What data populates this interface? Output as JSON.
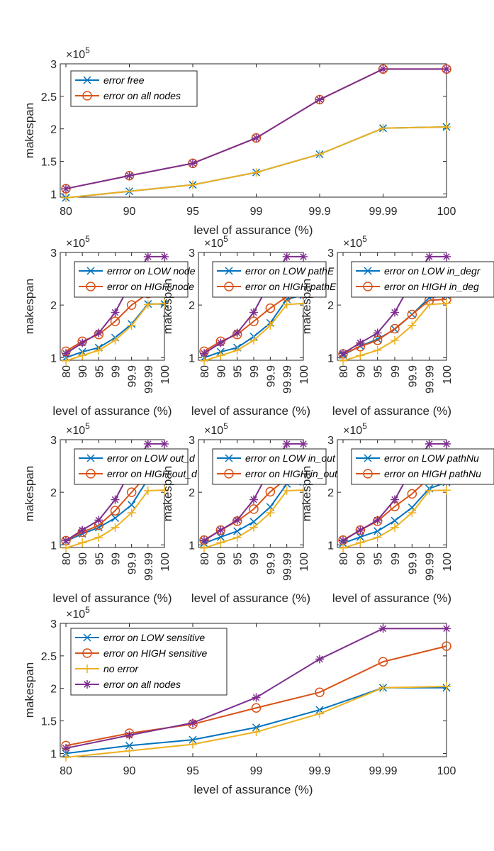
{
  "colors": {
    "blue": "#0072BD",
    "orange": "#D95319",
    "yellow": "#EDB120",
    "purple": "#7E2F8E"
  },
  "chart_data": [
    {
      "type": "line",
      "categories": [
        "80",
        "90",
        "95",
        "99",
        "99.9",
        "99.99",
        "100"
      ],
      "ylabel": "makespan",
      "xlabel": "level of assurance (%)",
      "exponent_label": "×10",
      "exponent": "5",
      "ylim": [
        0.95,
        3.0
      ],
      "yticks": [
        "1",
        "1.5",
        "2",
        "2.5",
        "3"
      ],
      "ytick_values": [
        1,
        1.5,
        2,
        2.5,
        3
      ],
      "legend_position": "top-left",
      "series": [
        {
          "name": "error free",
          "color": "#0072BD",
          "marker": "x",
          "in_legend": true,
          "values": [
            0.94,
            1.04,
            1.14,
            1.33,
            1.61,
            2.01,
            2.03
          ]
        },
        {
          "name": "error on all nodes",
          "color": "#D95319",
          "marker": "o",
          "in_legend": true,
          "values": [
            1.08,
            1.28,
            1.47,
            1.86,
            2.45,
            2.92,
            2.92
          ]
        },
        {
          "name": "",
          "color": "#EDB120",
          "marker": "+",
          "in_legend": false,
          "values": [
            0.94,
            1.04,
            1.14,
            1.33,
            1.61,
            2.01,
            2.03
          ]
        },
        {
          "name": "",
          "color": "#7E2F8E",
          "marker": "*",
          "in_legend": false,
          "values": [
            1.08,
            1.28,
            1.47,
            1.86,
            2.45,
            2.92,
            2.92
          ]
        }
      ]
    },
    {
      "type": "line",
      "categories": [
        "80",
        "90",
        "95",
        "99",
        "99.9",
        "99.99",
        "100"
      ],
      "ylabel": "makespan",
      "xlabel": "level of assurance (%)",
      "exponent_label": "×10",
      "exponent": "5",
      "ylim": [
        0.95,
        3.0
      ],
      "yticks": [
        "1",
        "2",
        "3"
      ],
      "ytick_values": [
        1,
        2,
        3
      ],
      "legend_position": "top-right",
      "series": [
        {
          "name": "errror on LOW node",
          "color": "#0072BD",
          "marker": "x",
          "in_legend": true,
          "values": [
            1.0,
            1.11,
            1.19,
            1.38,
            1.64,
            2.02,
            2.02
          ]
        },
        {
          "name": "error on HIGH node",
          "color": "#D95319",
          "marker": "o",
          "in_legend": true,
          "values": [
            1.12,
            1.31,
            1.44,
            1.69,
            2.0,
            2.22,
            2.29
          ]
        },
        {
          "name": "",
          "color": "#EDB120",
          "marker": "+",
          "in_legend": false,
          "values": [
            0.94,
            1.04,
            1.14,
            1.33,
            1.61,
            2.01,
            2.03
          ]
        },
        {
          "name": "",
          "color": "#7E2F8E",
          "marker": "*",
          "in_legend": false,
          "values": [
            1.08,
            1.28,
            1.47,
            1.86,
            2.45,
            2.92,
            2.92
          ]
        }
      ]
    },
    {
      "type": "line",
      "categories": [
        "80",
        "90",
        "95",
        "99",
        "99.9",
        "99.99",
        "100"
      ],
      "ylabel": "makespan",
      "xlabel": "level of assurance (%)",
      "exponent_label": "×10",
      "exponent": "5",
      "ylim": [
        0.95,
        3.0
      ],
      "yticks": [
        "1",
        "2",
        "3"
      ],
      "ytick_values": [
        1,
        2,
        3
      ],
      "legend_position": "top-right",
      "series": [
        {
          "name": "error on LOW pathE",
          "color": "#0072BD",
          "marker": "x",
          "in_legend": true,
          "values": [
            1.0,
            1.11,
            1.19,
            1.4,
            1.66,
            2.11,
            2.19
          ]
        },
        {
          "name": "error on HIGH pathE",
          "color": "#D95319",
          "marker": "o",
          "in_legend": true,
          "values": [
            1.12,
            1.31,
            1.44,
            1.69,
            1.94,
            2.16,
            2.22
          ]
        },
        {
          "name": "",
          "color": "#EDB120",
          "marker": "+",
          "in_legend": false,
          "values": [
            0.94,
            1.04,
            1.14,
            1.33,
            1.61,
            2.01,
            2.03
          ]
        },
        {
          "name": "",
          "color": "#7E2F8E",
          "marker": "*",
          "in_legend": false,
          "values": [
            1.08,
            1.28,
            1.47,
            1.86,
            2.45,
            2.92,
            2.92
          ]
        }
      ]
    },
    {
      "type": "line",
      "categories": [
        "80",
        "90",
        "95",
        "99",
        "99.9",
        "99.99",
        "100"
      ],
      "ylabel": "makespan",
      "xlabel": "level of assurance (%)",
      "exponent_label": "×10",
      "exponent": "5",
      "ylim": [
        0.95,
        3.0
      ],
      "yticks": [
        "1",
        "2",
        "3"
      ],
      "ytick_values": [
        1,
        2,
        3
      ],
      "legend_position": "top-right",
      "series": [
        {
          "name": "error on LOW in_degr",
          "color": "#0072BD",
          "marker": "x",
          "in_legend": true,
          "values": [
            1.05,
            1.22,
            1.35,
            1.54,
            1.82,
            2.14,
            2.18
          ]
        },
        {
          "name": "error on HIGH in_deg",
          "color": "#D95319",
          "marker": "o",
          "in_legend": true,
          "values": [
            1.07,
            1.21,
            1.33,
            1.55,
            1.82,
            2.09,
            2.11
          ]
        },
        {
          "name": "",
          "color": "#EDB120",
          "marker": "+",
          "in_legend": false,
          "values": [
            0.94,
            1.04,
            1.14,
            1.33,
            1.61,
            2.01,
            2.03
          ]
        },
        {
          "name": "",
          "color": "#7E2F8E",
          "marker": "*",
          "in_legend": false,
          "values": [
            1.08,
            1.28,
            1.47,
            1.86,
            2.45,
            2.92,
            2.92
          ]
        }
      ]
    },
    {
      "type": "line",
      "categories": [
        "80",
        "90",
        "95",
        "99",
        "99.9",
        "99.99",
        "100"
      ],
      "ylabel": "makespan",
      "xlabel": "level of assurance (%)",
      "exponent_label": "×10",
      "exponent": "5",
      "ylim": [
        0.95,
        3.0
      ],
      "yticks": [
        "1",
        "2",
        "3"
      ],
      "ytick_values": [
        1,
        2,
        3
      ],
      "legend_position": "top-right",
      "series": [
        {
          "name": "error on LOW out_d",
          "color": "#0072BD",
          "marker": "x",
          "in_legend": true,
          "values": [
            1.07,
            1.21,
            1.33,
            1.51,
            1.76,
            2.25,
            2.29
          ]
        },
        {
          "name": "error on HIGH out_d",
          "color": "#D95319",
          "marker": "o",
          "in_legend": true,
          "values": [
            1.08,
            1.24,
            1.37,
            1.65,
            2.0,
            2.35,
            2.4
          ]
        },
        {
          "name": "",
          "color": "#EDB120",
          "marker": "+",
          "in_legend": false,
          "values": [
            0.94,
            1.04,
            1.14,
            1.33,
            1.61,
            2.03,
            2.04
          ]
        },
        {
          "name": "",
          "color": "#7E2F8E",
          "marker": "*",
          "in_legend": false,
          "values": [
            1.08,
            1.28,
            1.47,
            1.86,
            2.45,
            2.92,
            2.92
          ]
        }
      ]
    },
    {
      "type": "line",
      "categories": [
        "80",
        "90",
        "95",
        "99",
        "99.9",
        "99.99",
        "100"
      ],
      "ylabel": "makespan",
      "xlabel": "level of assurance (%)",
      "exponent_label": "×10",
      "exponent": "5",
      "ylim": [
        0.95,
        3.0
      ],
      "yticks": [
        "1",
        "2",
        "3"
      ],
      "ytick_values": [
        1,
        2,
        3
      ],
      "legend_position": "top-right",
      "series": [
        {
          "name": "error on LOW in_out",
          "color": "#0072BD",
          "marker": "x",
          "in_legend": true,
          "values": [
            1.03,
            1.15,
            1.26,
            1.44,
            1.72,
            2.16,
            2.2
          ]
        },
        {
          "name": "error on HIGH in_out",
          "color": "#D95319",
          "marker": "o",
          "in_legend": true,
          "values": [
            1.09,
            1.28,
            1.45,
            1.68,
            2.01,
            2.26,
            2.4
          ]
        },
        {
          "name": "",
          "color": "#EDB120",
          "marker": "+",
          "in_legend": false,
          "values": [
            0.94,
            1.04,
            1.14,
            1.33,
            1.61,
            2.03,
            2.04
          ]
        },
        {
          "name": "",
          "color": "#7E2F8E",
          "marker": "*",
          "in_legend": false,
          "values": [
            1.08,
            1.28,
            1.47,
            1.86,
            2.45,
            2.92,
            2.92
          ]
        }
      ]
    },
    {
      "type": "line",
      "categories": [
        "80",
        "90",
        "95",
        "99",
        "99.9",
        "99.99",
        "100"
      ],
      "ylabel": "makespan",
      "xlabel": "level of assurance (%)",
      "exponent_label": "×10",
      "exponent": "5",
      "ylim": [
        0.95,
        3.0
      ],
      "yticks": [
        "1",
        "2",
        "3"
      ],
      "ytick_values": [
        1,
        2,
        3
      ],
      "legend_position": "top-right",
      "series": [
        {
          "name": "error on LOW pathNu",
          "color": "#0072BD",
          "marker": "x",
          "in_legend": true,
          "values": [
            1.03,
            1.15,
            1.26,
            1.46,
            1.71,
            2.07,
            2.19
          ]
        },
        {
          "name": "error on HIGH pathNu",
          "color": "#D95319",
          "marker": "o",
          "in_legend": true,
          "values": [
            1.09,
            1.28,
            1.45,
            1.73,
            1.97,
            2.27,
            2.4
          ]
        },
        {
          "name": "",
          "color": "#EDB120",
          "marker": "+",
          "in_legend": false,
          "values": [
            0.94,
            1.04,
            1.14,
            1.33,
            1.61,
            2.03,
            2.04
          ]
        },
        {
          "name": "",
          "color": "#7E2F8E",
          "marker": "*",
          "in_legend": false,
          "values": [
            1.08,
            1.28,
            1.47,
            1.86,
            2.45,
            2.92,
            2.92
          ]
        }
      ]
    },
    {
      "type": "line",
      "categories": [
        "80",
        "90",
        "95",
        "99",
        "99.9",
        "99.99",
        "100"
      ],
      "ylabel": "makespan",
      "xlabel": "level of assurance (%)",
      "exponent_label": "×10",
      "exponent": "5",
      "ylim": [
        0.95,
        3.0
      ],
      "yticks": [
        "1",
        "1.5",
        "2",
        "2.5",
        "3"
      ],
      "ytick_values": [
        1,
        1.5,
        2,
        2.5,
        3
      ],
      "legend_position": "top-left",
      "series": [
        {
          "name": "error on LOW sensitive",
          "color": "#0072BD",
          "marker": "x",
          "in_legend": true,
          "values": [
            1.0,
            1.12,
            1.21,
            1.4,
            1.67,
            2.01,
            2.01
          ]
        },
        {
          "name": "error on HIGH sensitive",
          "color": "#D95319",
          "marker": "o",
          "in_legend": true,
          "values": [
            1.12,
            1.31,
            1.45,
            1.7,
            1.94,
            2.41,
            2.65
          ]
        },
        {
          "name": "no error",
          "color": "#EDB120",
          "marker": "+",
          "in_legend": true,
          "values": [
            0.94,
            1.04,
            1.14,
            1.33,
            1.61,
            2.01,
            2.03
          ]
        },
        {
          "name": "error on all nodes",
          "color": "#7E2F8E",
          "marker": "*",
          "in_legend": true,
          "values": [
            1.08,
            1.28,
            1.47,
            1.86,
            2.45,
            2.92,
            2.92
          ]
        }
      ]
    }
  ]
}
